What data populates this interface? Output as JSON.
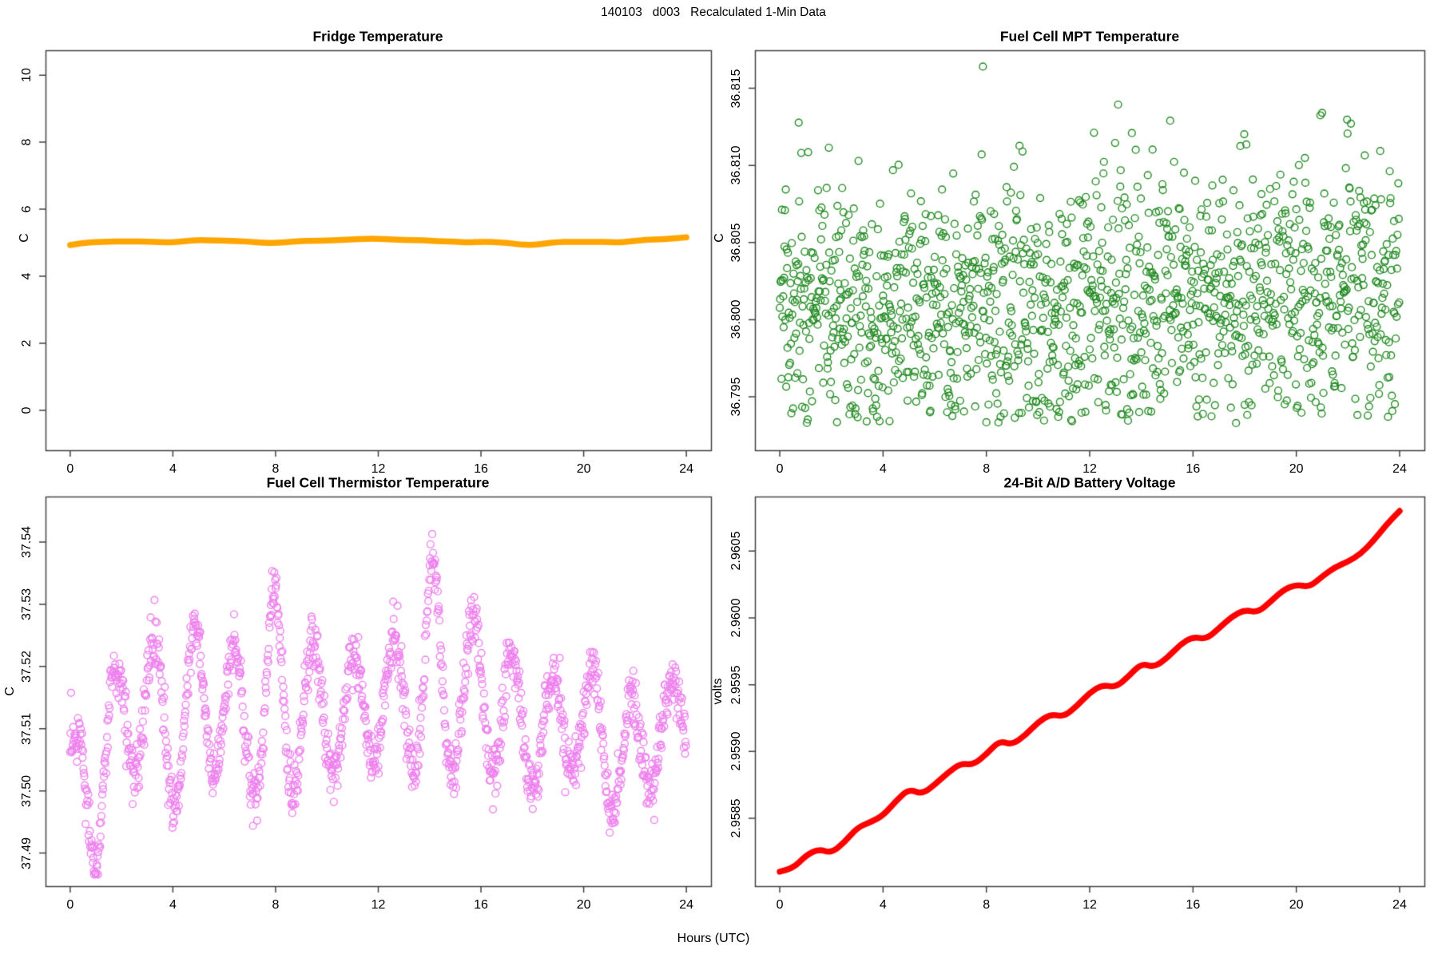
{
  "figure": {
    "main_title": "140103   d003   Recalculated 1-Min Data",
    "shared_xlabel": "Hours (UTC)",
    "background": "#FFFFFF",
    "axis_color": "#404040",
    "text_color": "#000000"
  },
  "chart_data": [
    {
      "id": "fridge",
      "type": "line",
      "title": "Fridge Temperature",
      "xlabel": "",
      "ylabel": "C",
      "color": "#FFA500",
      "line_width": 7.5,
      "xlim": [
        0,
        24
      ],
      "ylim": [
        -0.75,
        10.3
      ],
      "xticks": [
        0,
        4,
        8,
        12,
        16,
        20,
        24
      ],
      "xtick_labels": [
        "0",
        "4",
        "8",
        "12",
        "16",
        "20",
        "24"
      ],
      "yticks": [
        0,
        2,
        4,
        6,
        8,
        10
      ],
      "ytick_labels": [
        "0",
        "2",
        "4",
        "6",
        "8",
        "10"
      ],
      "x": [
        0,
        0.5,
        1,
        1.5,
        2,
        2.5,
        3,
        3.5,
        4,
        4.5,
        5,
        5.5,
        6,
        6.5,
        7,
        7.5,
        8,
        8.5,
        9,
        9.5,
        10,
        10.5,
        11,
        11.5,
        12,
        12.5,
        13,
        13.5,
        14,
        14.5,
        15,
        15.5,
        16,
        16.5,
        17,
        17.5,
        18,
        18.5,
        19,
        19.5,
        20,
        20.5,
        21,
        21.5,
        22,
        22.5,
        23,
        23.5,
        24
      ],
      "y": [
        4.93,
        4.99,
        5.02,
        5.03,
        5.04,
        5.04,
        5.03,
        5.02,
        5.01,
        5.05,
        5.08,
        5.07,
        5.06,
        5.05,
        5.03,
        5.0,
        4.99,
        5.02,
        5.05,
        5.06,
        5.06,
        5.08,
        5.1,
        5.12,
        5.12,
        5.1,
        5.08,
        5.08,
        5.06,
        5.04,
        5.03,
        5.01,
        5.03,
        5.02,
        5.0,
        4.95,
        4.93,
        4.98,
        5.02,
        5.03,
        5.02,
        5.03,
        5.02,
        5.01,
        5.06,
        5.09,
        5.1,
        5.13,
        5.16
      ]
    },
    {
      "id": "mpt",
      "type": "scatter",
      "title": "Fuel Cell MPT Temperature",
      "xlabel": "",
      "ylabel": "C",
      "color": "#228B22",
      "marker": "open-circle",
      "marker_radius": 4.4,
      "xlim": [
        0,
        24
      ],
      "ylim": [
        36.7925,
        36.8165
      ],
      "xticks": [
        0,
        4,
        8,
        12,
        16,
        20,
        24
      ],
      "xtick_labels": [
        "0",
        "4",
        "8",
        "12",
        "16",
        "20",
        "24"
      ],
      "yticks": [
        36.795,
        36.8,
        36.805,
        36.81,
        36.815
      ],
      "ytick_labels": [
        "36.795",
        "36.800",
        "36.805",
        "36.810",
        "36.815"
      ],
      "points": {
        "n": 1440,
        "sample_interval_hours": 0.0167,
        "mean_start": 36.8006,
        "mean_end": 36.8022,
        "sd": 0.0042,
        "y_min": 36.7933,
        "y_max": 36.8166,
        "seed": 20140103
      }
    },
    {
      "id": "thermistor",
      "type": "scatter",
      "title": "Fuel Cell Thermistor Temperature",
      "xlabel": "",
      "ylabel": "C",
      "color": "#EE82EE",
      "marker": "open-circle",
      "marker_radius": 4.4,
      "xlim": [
        0,
        24
      ],
      "ylim": [
        37.487,
        37.545
      ],
      "xticks": [
        0,
        4,
        8,
        12,
        16,
        20,
        24
      ],
      "xtick_labels": [
        "0",
        "4",
        "8",
        "12",
        "16",
        "20",
        "24"
      ],
      "yticks": [
        37.49,
        37.5,
        37.51,
        37.52,
        37.53,
        37.54
      ],
      "ytick_labels": [
        "37.49",
        "37.50",
        "37.51",
        "37.52",
        "37.53",
        "37.54"
      ],
      "points": {
        "n": 1440,
        "oscillation_period_hours": 1.55,
        "oscillation_phase": 0.8,
        "noise_sd": 0.0022,
        "y_min": 37.4865,
        "y_max": 37.5445,
        "seed": 1403,
        "envelope_t": [
          0,
          1,
          2,
          3,
          4,
          5,
          6,
          7,
          8,
          9,
          10,
          11,
          12,
          13,
          14,
          15,
          16,
          17,
          18,
          19,
          20,
          21,
          22,
          23,
          24
        ],
        "envelope_center": [
          37.502,
          37.5,
          37.512,
          37.515,
          37.509,
          37.515,
          37.513,
          37.511,
          37.513,
          37.515,
          37.511,
          37.513,
          37.514,
          37.516,
          37.517,
          37.515,
          37.516,
          37.513,
          37.509,
          37.511,
          37.511,
          37.507,
          37.505,
          37.51,
          37.511
        ],
        "envelope_amp": [
          0.008,
          0.013,
          0.01,
          0.011,
          0.013,
          0.012,
          0.01,
          0.011,
          0.02,
          0.013,
          0.009,
          0.009,
          0.01,
          0.009,
          0.022,
          0.011,
          0.013,
          0.011,
          0.009,
          0.008,
          0.009,
          0.011,
          0.009,
          0.007,
          0.008
        ]
      }
    },
    {
      "id": "battery",
      "type": "line",
      "title": "24-Bit A/D Battery Voltage",
      "xlabel": "",
      "ylabel": "volts",
      "color": "#FF0000",
      "line_width": 7.5,
      "xlim": [
        0,
        24
      ],
      "ylim": [
        2.9581,
        2.9608
      ],
      "xticks": [
        0,
        4,
        8,
        12,
        16,
        20,
        24
      ],
      "xtick_labels": [
        "0",
        "4",
        "8",
        "12",
        "16",
        "20",
        "24"
      ],
      "yticks": [
        2.9585,
        2.959,
        2.9595,
        2.96,
        2.9605
      ],
      "ytick_labels": [
        "2.9585",
        "2.9590",
        "2.9595",
        "2.9600",
        "2.9605"
      ],
      "x": [
        0,
        0.5,
        1,
        1.5,
        2,
        2.5,
        3,
        3.5,
        4,
        4.5,
        5,
        5.5,
        6,
        6.5,
        7,
        7.5,
        8,
        8.5,
        9,
        9.5,
        10,
        10.5,
        11,
        11.5,
        12,
        12.5,
        13,
        13.5,
        14,
        14.5,
        15,
        15.5,
        16,
        16.5,
        17,
        17.5,
        18,
        18.5,
        19,
        19.5,
        20,
        20.5,
        21,
        21.5,
        22,
        22.5,
        23,
        23.5,
        24
      ],
      "y": [
        2.9581,
        2.95812,
        2.95822,
        2.95827,
        2.95824,
        2.95832,
        2.95843,
        2.95847,
        2.95852,
        2.95863,
        2.95872,
        2.95868,
        2.95875,
        2.95884,
        2.95891,
        2.9589,
        2.95898,
        2.95908,
        2.95905,
        2.95912,
        2.95922,
        2.95928,
        2.95926,
        2.95934,
        2.95944,
        2.9595,
        2.95948,
        2.95956,
        2.95966,
        2.95963,
        2.9597,
        2.9598,
        2.95986,
        2.95984,
        2.95992,
        2.96001,
        2.96006,
        2.96004,
        2.96012,
        2.96021,
        2.96025,
        2.96023,
        2.96031,
        2.96038,
        2.96042,
        2.96048,
        2.96058,
        2.9607,
        2.9608
      ]
    }
  ]
}
